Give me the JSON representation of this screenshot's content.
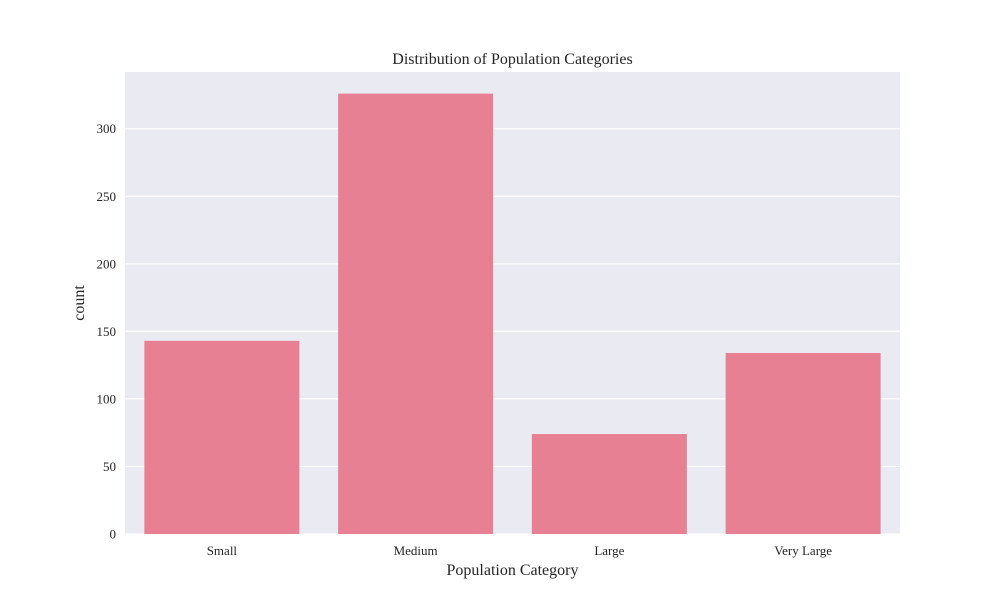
{
  "chart_data": {
    "type": "bar",
    "title": "Distribution of Population Categories",
    "xlabel": "Population Category",
    "ylabel": "count",
    "categories": [
      "Small",
      "Medium",
      "Large",
      "Very Large"
    ],
    "values": [
      143,
      326,
      74,
      134
    ],
    "ylim": [
      0,
      342
    ],
    "yticks": [
      0,
      50,
      100,
      150,
      200,
      250,
      300
    ],
    "ytick_labels": [
      "0",
      "50",
      "100",
      "150",
      "200",
      "250",
      "300"
    ],
    "grid": true,
    "legend": "none",
    "colors": {
      "bar": "#E78093",
      "plot_background": "#EAEAF2",
      "grid": "#FFFFFF",
      "text": "#262626"
    }
  }
}
